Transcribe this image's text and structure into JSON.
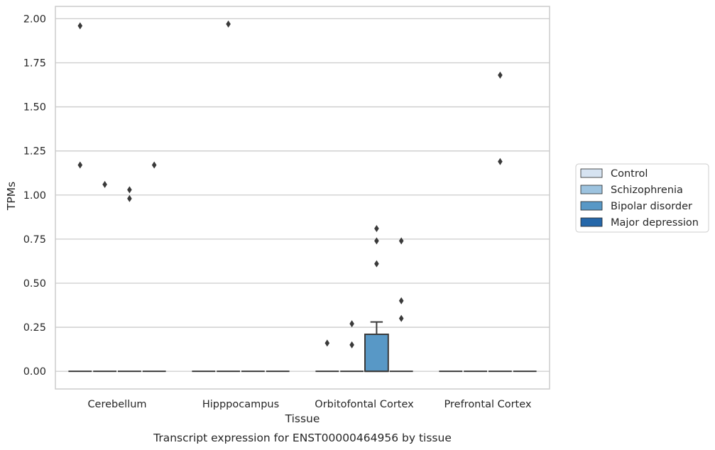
{
  "caption": "Transcript expression for ENST00000464956 by tissue",
  "chart_data": {
    "type": "box",
    "xlabel": "Tissue",
    "ylabel": "TPMs",
    "ylim": [
      -0.1,
      2.07
    ],
    "yticks": [
      "0.00",
      "0.25",
      "0.50",
      "0.75",
      "1.00",
      "1.25",
      "1.50",
      "1.75",
      "2.00"
    ],
    "categories": [
      "Cerebellum",
      "Hipppocampus",
      "Orbitofontal Cortex",
      "Prefrontal Cortex"
    ],
    "grid": "horizontal",
    "legend_position": "right",
    "colors": {
      "Control": "#d6e3f1",
      "Schizophrenia": "#9dc3df",
      "Bipolar disorder": "#5898c6",
      "Major depression": "#2567a9",
      "grid": "#cccccc",
      "spine": "#cccccc",
      "box_edge": "#3a3a3a",
      "outlier": "#3a3a3a"
    },
    "series": [
      {
        "name": "Control",
        "boxes": [
          {
            "q1": 0,
            "median": 0,
            "q3": 0,
            "whislo": 0,
            "whishi": 0,
            "fliers": [
              1.96,
              1.17
            ]
          },
          {
            "q1": 0,
            "median": 0,
            "q3": 0,
            "whislo": 0,
            "whishi": 0,
            "fliers": []
          },
          {
            "q1": 0,
            "median": 0,
            "q3": 0,
            "whislo": 0,
            "whishi": 0,
            "fliers": [
              0.16
            ]
          },
          {
            "q1": 0,
            "median": 0,
            "q3": 0,
            "whislo": 0,
            "whishi": 0,
            "fliers": []
          }
        ]
      },
      {
        "name": "Schizophrenia",
        "boxes": [
          {
            "q1": 0,
            "median": 0,
            "q3": 0,
            "whislo": 0,
            "whishi": 0,
            "fliers": [
              1.06
            ]
          },
          {
            "q1": 0,
            "median": 0,
            "q3": 0,
            "whislo": 0,
            "whishi": 0,
            "fliers": [
              1.97
            ]
          },
          {
            "q1": 0,
            "median": 0,
            "q3": 0,
            "whislo": 0,
            "whishi": 0,
            "fliers": [
              0.27,
              0.15
            ]
          },
          {
            "q1": 0,
            "median": 0,
            "q3": 0,
            "whislo": 0,
            "whishi": 0,
            "fliers": []
          }
        ]
      },
      {
        "name": "Bipolar disorder",
        "boxes": [
          {
            "q1": 0,
            "median": 0,
            "q3": 0,
            "whislo": 0,
            "whishi": 0,
            "fliers": [
              1.03,
              0.98
            ]
          },
          {
            "q1": 0,
            "median": 0,
            "q3": 0,
            "whislo": 0,
            "whishi": 0,
            "fliers": []
          },
          {
            "q1": 0,
            "median": 0,
            "q3": 0.21,
            "whislo": 0,
            "whishi": 0.28,
            "fliers": [
              0.81,
              0.74,
              0.61
            ]
          },
          {
            "q1": 0,
            "median": 0,
            "q3": 0,
            "whislo": 0,
            "whishi": 0,
            "fliers": [
              1.68,
              1.19
            ]
          }
        ]
      },
      {
        "name": "Major depression",
        "boxes": [
          {
            "q1": 0,
            "median": 0,
            "q3": 0,
            "whislo": 0,
            "whishi": 0,
            "fliers": [
              1.17
            ]
          },
          {
            "q1": 0,
            "median": 0,
            "q3": 0,
            "whislo": 0,
            "whishi": 0,
            "fliers": []
          },
          {
            "q1": 0,
            "median": 0,
            "q3": 0,
            "whislo": 0,
            "whishi": 0,
            "fliers": [
              0.74,
              0.4,
              0.3
            ]
          },
          {
            "q1": 0,
            "median": 0,
            "q3": 0,
            "whislo": 0,
            "whishi": 0,
            "fliers": []
          }
        ]
      }
    ]
  }
}
